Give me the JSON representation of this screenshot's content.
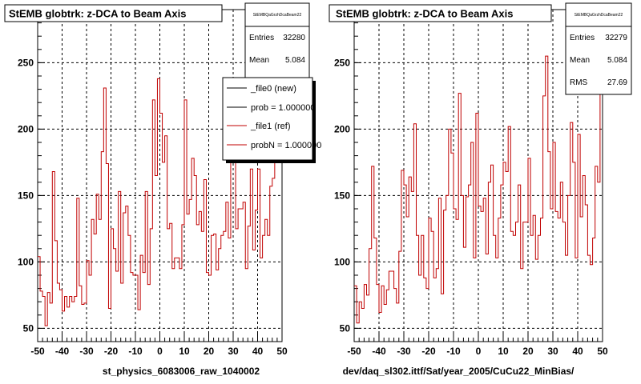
{
  "colors": {
    "hist": "#c00000",
    "frame": "#000000",
    "legend_new": "#000000",
    "legend_ref": "#c00000"
  },
  "panels": [
    {
      "title": "StEMB globtrk: z-DCA to Beam Axis",
      "xlabel": "st_physics_6083006_raw_1040002",
      "stats_name": "StEMBQaGrzhDcaBeam22",
      "stats": [
        {
          "label": "Entries",
          "value": "32280"
        },
        {
          "label": "Mean",
          "value": "5.084"
        }
      ],
      "legend": [
        {
          "label": "_file0 (new)"
        },
        {
          "label": "prob = 1.000000"
        },
        {
          "label": "_file1 (ref)"
        },
        {
          "label": "probN = 1.000000"
        }
      ]
    },
    {
      "title": "StEMB globtrk: z-DCA to Beam Axis",
      "xlabel": "dev/daq_sl302.ittf/Sat/year_2005/CuCu22_MinBias/",
      "stats_name": "StEMBQaGrzhDcaBeam22",
      "stats": [
        {
          "label": "Entries",
          "value": "32279"
        },
        {
          "label": "Mean",
          "value": "5.084"
        },
        {
          "label": "RMS",
          "value": "27.69"
        }
      ],
      "legend": []
    }
  ],
  "chart_data": [
    {
      "type": "histogram",
      "title": "StEMB globtrk: z-DCA to Beam Axis",
      "xlabel": "st_physics_6083006_raw_1040002",
      "ylabel": "",
      "xlim": [
        -50,
        50
      ],
      "ylim": [
        40,
        290
      ],
      "xticks": [
        -50,
        -40,
        -30,
        -20,
        -10,
        0,
        10,
        20,
        30,
        40,
        50
      ],
      "yticks": [
        50,
        100,
        150,
        200,
        250
      ],
      "grid": true,
      "bin_width": 1,
      "series": [
        {
          "values": [
            104,
            78,
            74,
            52,
            77,
            69,
            168,
            116,
            84,
            79,
            63,
            74,
            66,
            74,
            70,
            74,
            148,
            82,
            68,
            69,
            101,
            90,
            132,
            121,
            151,
            132,
            183,
            231,
            174,
            65,
            125,
            110,
            93,
            153,
            84,
            137,
            142,
            120,
            92,
            90,
            90,
            64,
            105,
            92,
            153,
            83,
            125,
            222,
            165,
            238,
            212,
            175,
            195,
            125,
            129,
            95,
            103,
            103,
            95,
            128,
            222,
            136,
            147,
            178,
            165,
            128,
            138,
            123,
            162,
            92,
            90,
            120,
            121,
            94,
            110,
            120,
            123,
            145,
            118,
            179,
            220,
            125,
            140,
            140,
            145,
            95,
            127,
            170,
            109,
            139,
            170,
            103,
            120,
            132,
            120,
            157,
            163,
            215,
            177,
            194
          ]
        }
      ]
    },
    {
      "type": "histogram",
      "title": "StEMB globtrk: z-DCA to Beam Axis",
      "xlabel": "dev/daq_sl302.ittf/Sat/year_2005/CuCu22_MinBias/",
      "ylabel": "",
      "xlim": [
        -50,
        50
      ],
      "ylim": [
        40,
        290
      ],
      "xticks": [
        -50,
        -40,
        -30,
        -20,
        -10,
        0,
        10,
        20,
        30,
        40,
        50
      ],
      "yticks": [
        50,
        100,
        150,
        200,
        250
      ],
      "grid": true,
      "bin_width": 1,
      "series": [
        {
          "values": [
            82,
            54,
            70,
            65,
            83,
            75,
            110,
            172,
            118,
            83,
            62,
            82,
            68,
            79,
            93,
            93,
            80,
            69,
            108,
            169,
            158,
            134,
            164,
            153,
            204,
            120,
            90,
            120,
            88,
            80,
            133,
            123,
            88,
            95,
            148,
            76,
            139,
            150,
            200,
            182,
            140,
            132,
            227,
            150,
            111,
            149,
            158,
            190,
            103,
            212,
            142,
            138,
            148,
            106,
            160,
            173,
            120,
            103,
            133,
            158,
            175,
            168,
            202,
            123,
            120,
            130,
            158,
            95,
            130,
            130,
            178,
            120,
            135,
            102,
            120,
            133,
            225,
            255,
            183,
            140,
            190,
            138,
            133,
            160,
            130,
            105,
            150,
            205,
            175,
            103,
            196,
            134,
            165,
            143,
            105,
            98,
            118,
            172,
            160,
            270
          ]
        }
      ]
    }
  ]
}
